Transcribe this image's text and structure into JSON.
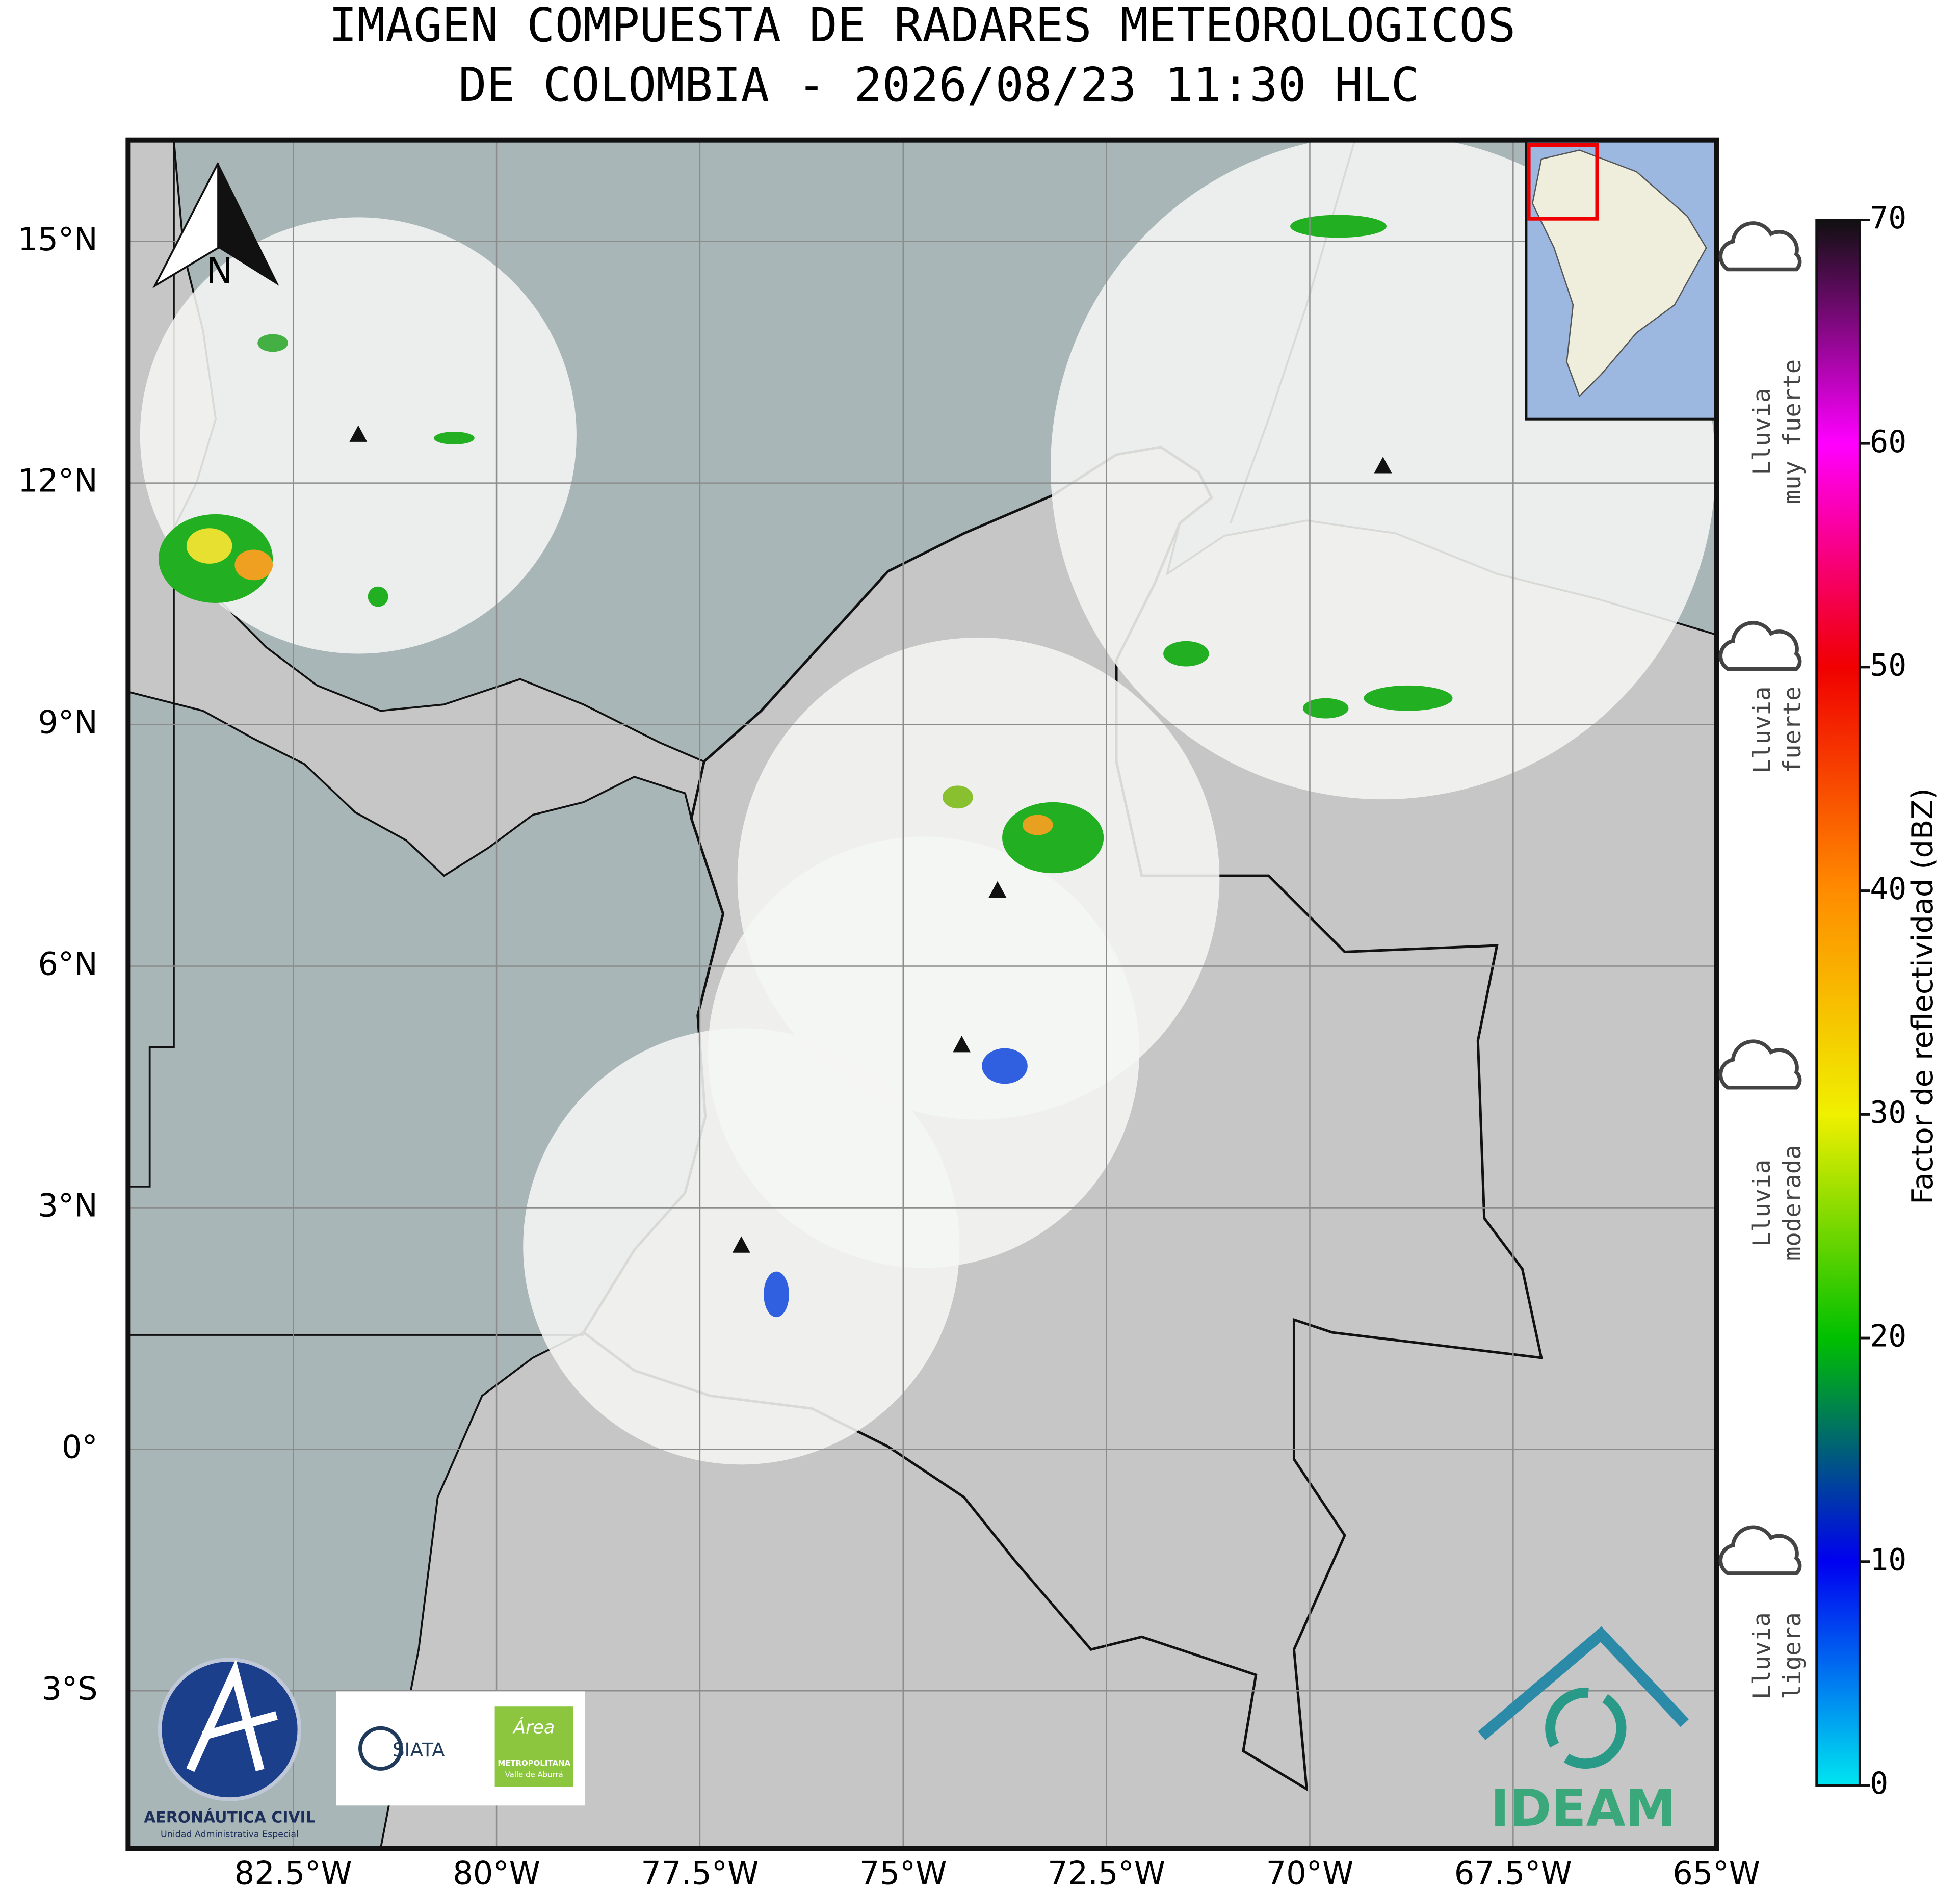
{
  "header": {
    "title_lines": [
      "IMAGEN COMPUESTA DE RADARES METEOROLOGICOS",
      "DE COLOMBIA - 2026/08/23 11:30 HLC"
    ]
  },
  "map": {
    "xlim": [
      -84.53,
      -65
    ],
    "ylim": [
      -4.96,
      16.26
    ],
    "xticks": [
      {
        "value": -82.5,
        "label": "82.5°W"
      },
      {
        "value": -80,
        "label": "80°W"
      },
      {
        "value": -77.5,
        "label": "77.5°W"
      },
      {
        "value": -75,
        "label": "75°W"
      },
      {
        "value": -72.5,
        "label": "72.5°W"
      },
      {
        "value": -70,
        "label": "70°W"
      },
      {
        "value": -67.5,
        "label": "67.5°W"
      },
      {
        "value": -65,
        "label": "65°W"
      }
    ],
    "yticks": [
      {
        "value": -3,
        "label": "3°S"
      },
      {
        "value": 0,
        "label": "0°"
      },
      {
        "value": 3,
        "label": "3°N"
      },
      {
        "value": 6,
        "label": "6°N"
      },
      {
        "value": 9,
        "label": "9°N"
      },
      {
        "value": 12,
        "label": "12°N"
      },
      {
        "value": 15,
        "label": "15°N"
      }
    ],
    "grid": true,
    "north_label": "N",
    "radars": [
      {
        "lon": -81.7,
        "lat": 12.59
      },
      {
        "lon": -69.1,
        "lat": 12.2
      },
      {
        "lon": -73.84,
        "lat": 6.93
      },
      {
        "lon": -74.28,
        "lat": 5.01
      },
      {
        "lon": -76.99,
        "lat": 2.52
      }
    ]
  },
  "colorbar": {
    "label": "Factor de reflectividad (dBZ)",
    "lim": [
      0,
      70
    ],
    "ticks": [
      0,
      10,
      20,
      30,
      40,
      50,
      60,
      70
    ],
    "colors": [
      "#00e5f0",
      "#0000f0",
      "#00c000",
      "#f0f000",
      "#ff8c00",
      "#f00000",
      "#ff00ff",
      "#101010"
    ]
  },
  "rain_levels": [
    {
      "lines": [
        "Lluvia",
        "muy fuerte"
      ]
    },
    {
      "lines": [
        "Lluvia",
        "fuerte"
      ]
    },
    {
      "lines": [
        "Lluvia",
        "moderada"
      ]
    },
    {
      "lines": [
        "Lluvia",
        "ligera"
      ]
    }
  ],
  "logos": {
    "aerocivil": {
      "name": "AERONÁUTICA CIVIL",
      "sub": "Unidad Administrativa Especial"
    },
    "siata": "SIATA",
    "area": {
      "name": "Área",
      "sub1": "METROPOLITANA",
      "sub2": "Valle de Aburrá"
    },
    "ideam": "IDEAM"
  }
}
